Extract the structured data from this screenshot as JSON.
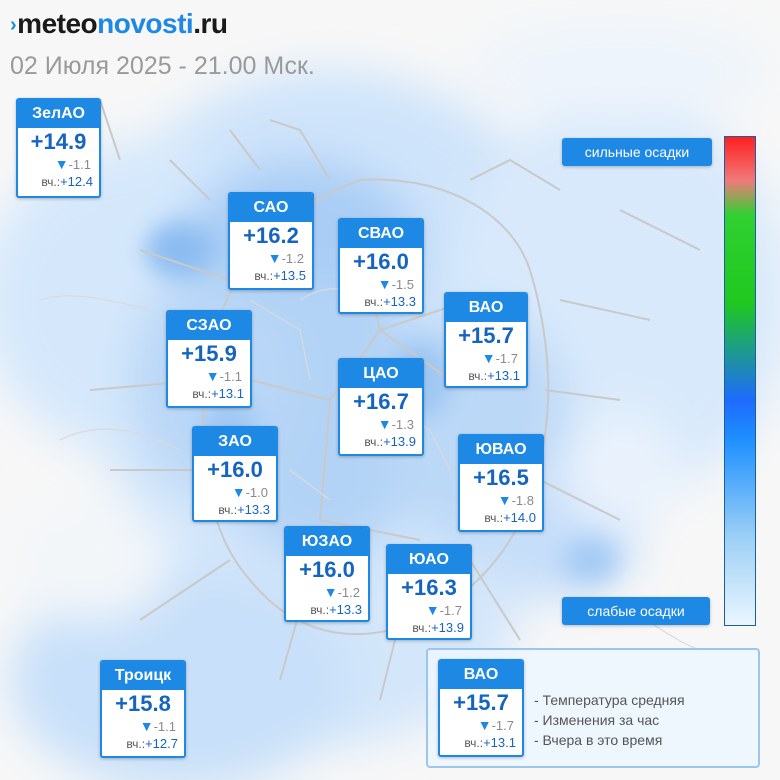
{
  "header": {
    "logo_mark": "›",
    "logo_part1": "meteo",
    "logo_part2": "novosti",
    "logo_part3": ".ru",
    "datetime": "02 Июля 2025 - 21.00 Мск."
  },
  "cards": [
    {
      "name": "ЗелАО",
      "temp": "+14.9",
      "change": "-1.1",
      "yesterday_label": "вч.:",
      "yesterday": "+12.4"
    },
    {
      "name": "САО",
      "temp": "+16.2",
      "change": "-1.2",
      "yesterday_label": "вч.:",
      "yesterday": "+13.5"
    },
    {
      "name": "СВАО",
      "temp": "+16.0",
      "change": "-1.5",
      "yesterday_label": "вч.:",
      "yesterday": "+13.3"
    },
    {
      "name": "ВАО",
      "temp": "+15.7",
      "change": "-1.7",
      "yesterday_label": "вч.:",
      "yesterday": "+13.1"
    },
    {
      "name": "СЗАО",
      "temp": "+15.9",
      "change": "-1.1",
      "yesterday_label": "вч.:",
      "yesterday": "+13.1"
    },
    {
      "name": "ЦАО",
      "temp": "+16.7",
      "change": "-1.3",
      "yesterday_label": "вч.:",
      "yesterday": "+13.9"
    },
    {
      "name": "ЗАО",
      "temp": "+16.0",
      "change": "-1.0",
      "yesterday_label": "вч.:",
      "yesterday": "+13.3"
    },
    {
      "name": "ЮВАО",
      "temp": "+16.5",
      "change": "-1.8",
      "yesterday_label": "вч.:",
      "yesterday": "+14.0"
    },
    {
      "name": "ЮЗАО",
      "temp": "+16.0",
      "change": "-1.2",
      "yesterday_label": "вч.:",
      "yesterday": "+13.3"
    },
    {
      "name": "ЮАО",
      "temp": "+16.3",
      "change": "-1.7",
      "yesterday_label": "вч.:",
      "yesterday": "+13.9"
    },
    {
      "name": "Троицк",
      "temp": "+15.8",
      "change": "-1.1",
      "yesterday_label": "вч.:",
      "yesterday": "+12.7"
    },
    {
      "name": "ВАО",
      "temp": "+15.7",
      "change": "-1.7",
      "yesterday_label": "вч.:",
      "yesterday": "+13.1"
    }
  ],
  "scale": {
    "top_label": "сильные осадки",
    "bottom_label": "слабые осадки",
    "colors": [
      "#ff2020",
      "#30d030",
      "#1e6bff",
      "#9ccff5",
      "#eaf6ff"
    ]
  },
  "legend": {
    "line1": "- Температура средняя",
    "line2": "- Изменения за час",
    "line3": "- Вчера в это время"
  },
  "icons": {
    "change_arrow": "down-triangle-icon",
    "logo_mark": "chevron-right-icon"
  }
}
